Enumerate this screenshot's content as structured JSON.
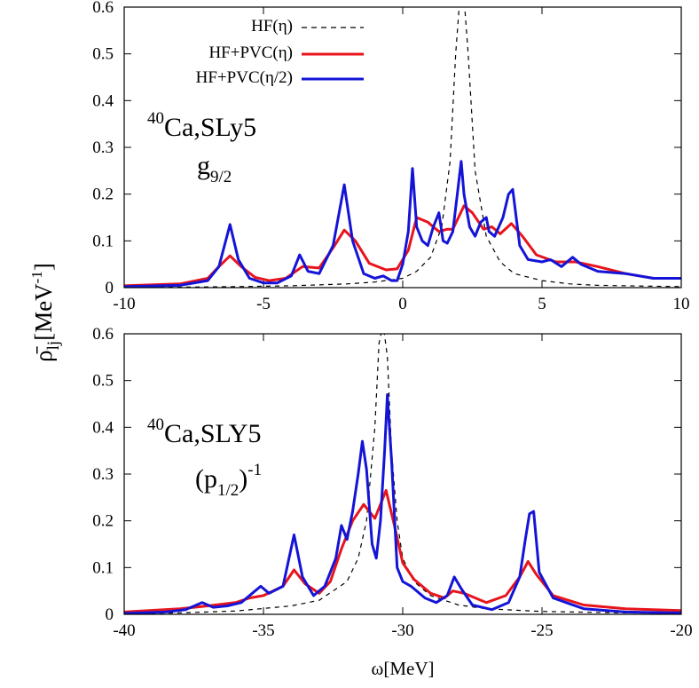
{
  "chart_data": [
    {
      "type": "line",
      "title": "",
      "xlim": [
        -10,
        10
      ],
      "ylim": [
        0,
        0.6
      ],
      "xticks": [
        "-10",
        "-5",
        "0",
        "5",
        "10"
      ],
      "xtick_values": [
        -10,
        -5,
        0,
        5,
        10
      ],
      "yticks": [
        "0",
        "0.1",
        "0.2",
        "0.3",
        "0.4",
        "0.5",
        "0.6"
      ],
      "ytick_values": [
        0,
        0.1,
        0.2,
        0.3,
        0.4,
        0.5,
        0.6
      ],
      "xlabel": "",
      "annotation": {
        "mass": "40",
        "nucleus": "Ca,SLy5",
        "orbital": "g",
        "orbital_sub": "9/2",
        "orbital_sup": ""
      },
      "legend": {
        "placement": "top-left"
      },
      "series": [
        {
          "name": "HF(η)",
          "color": "#000000",
          "dash": "dashed",
          "x": [
            -10,
            -6,
            -4,
            -2,
            -1,
            0,
            0.5,
            1,
            1.4,
            1.7,
            1.9,
            2.05,
            2.2,
            2.35,
            2.6,
            3,
            3.5,
            4,
            5,
            6,
            7,
            10
          ],
          "y": [
            0,
            0.002,
            0.004,
            0.008,
            0.012,
            0.02,
            0.035,
            0.065,
            0.13,
            0.27,
            0.5,
            0.62,
            0.62,
            0.5,
            0.25,
            0.11,
            0.055,
            0.03,
            0.015,
            0.008,
            0.005,
            0.002
          ]
        },
        {
          "name": "HF+PVC(η)",
          "color": "#e8141c",
          "dash": "solid",
          "x": [
            -10,
            -8,
            -7,
            -6.6,
            -6.2,
            -5.8,
            -5.3,
            -4.8,
            -4.2,
            -3.6,
            -3,
            -2.5,
            -2.1,
            -1.7,
            -1.2,
            -0.6,
            -0.2,
            0.2,
            0.5,
            0.9,
            1.3,
            1.6,
            1.8,
            2.2,
            2.5,
            2.9,
            3.2,
            3.5,
            3.9,
            4.3,
            4.8,
            5.5,
            6.2,
            7,
            8,
            9,
            10
          ],
          "y": [
            0.004,
            0.008,
            0.02,
            0.045,
            0.068,
            0.045,
            0.022,
            0.015,
            0.02,
            0.045,
            0.042,
            0.085,
            0.123,
            0.1,
            0.052,
            0.038,
            0.04,
            0.08,
            0.15,
            0.14,
            0.12,
            0.125,
            0.125,
            0.175,
            0.16,
            0.125,
            0.13,
            0.115,
            0.137,
            0.11,
            0.07,
            0.055,
            0.055,
            0.045,
            0.03,
            0.02,
            0.02
          ]
        },
        {
          "name": "HF+PVC(η/2)",
          "color": "#1414d8",
          "dash": "solid",
          "x": [
            -10,
            -8,
            -7,
            -6.6,
            -6.2,
            -5.9,
            -5.5,
            -5,
            -4.5,
            -4,
            -3.7,
            -3.4,
            -3,
            -2.5,
            -2.1,
            -1.8,
            -1.4,
            -1,
            -0.7,
            -0.4,
            -0.2,
            0,
            0.2,
            0.35,
            0.5,
            0.7,
            0.9,
            1.1,
            1.3,
            1.45,
            1.6,
            1.8,
            2,
            2.1,
            2.2,
            2.4,
            2.6,
            2.8,
            3.0,
            3.1,
            3.3,
            3.6,
            3.8,
            3.95,
            4.2,
            4.5,
            5,
            5.3,
            5.7,
            6.1,
            6.4,
            7,
            8,
            9,
            10
          ],
          "y": [
            0.002,
            0.005,
            0.015,
            0.045,
            0.135,
            0.06,
            0.02,
            0.01,
            0.01,
            0.025,
            0.07,
            0.035,
            0.03,
            0.09,
            0.22,
            0.1,
            0.03,
            0.02,
            0.025,
            0.015,
            0.015,
            0.05,
            0.12,
            0.255,
            0.13,
            0.1,
            0.09,
            0.13,
            0.16,
            0.1,
            0.095,
            0.12,
            0.22,
            0.27,
            0.2,
            0.13,
            0.11,
            0.14,
            0.15,
            0.12,
            0.11,
            0.15,
            0.2,
            0.21,
            0.09,
            0.06,
            0.055,
            0.06,
            0.045,
            0.065,
            0.05,
            0.035,
            0.03,
            0.02,
            0.02
          ]
        }
      ]
    },
    {
      "type": "line",
      "title": "",
      "xlim": [
        -40,
        -20
      ],
      "ylim": [
        0,
        0.6
      ],
      "xticks": [
        "-40",
        "-35",
        "-30",
        "-25",
        "-20"
      ],
      "xtick_values": [
        -40,
        -35,
        -30,
        -25,
        -20
      ],
      "yticks": [
        "0",
        "0.1",
        "0.2",
        "0.3",
        "0.4",
        "0.5",
        "0.6"
      ],
      "ytick_values": [
        0,
        0.1,
        0.2,
        0.3,
        0.4,
        0.5,
        0.6
      ],
      "xlabel": "ω[MeV]",
      "annotation": {
        "mass": "40",
        "nucleus": "Ca,SLY5",
        "orbital": "(p",
        "orbital_sub": "1/2",
        "orbital_sup": "-1"
      },
      "series": [
        {
          "name": "HF(η)",
          "color": "#000000",
          "dash": "dashed",
          "x": [
            -40,
            -38,
            -36,
            -34,
            -33,
            -32,
            -31.6,
            -31.3,
            -31.0,
            -30.85,
            -30.7,
            -30.55,
            -30.4,
            -30.2,
            -30.0,
            -29.6,
            -29,
            -28,
            -27,
            -25,
            -22,
            -20
          ],
          "y": [
            0.001,
            0.003,
            0.007,
            0.018,
            0.03,
            0.07,
            0.12,
            0.2,
            0.4,
            0.58,
            0.62,
            0.55,
            0.35,
            0.2,
            0.12,
            0.07,
            0.04,
            0.02,
            0.012,
            0.006,
            0.003,
            0.002
          ]
        },
        {
          "name": "HF+PVC(η)",
          "color": "#e8141c",
          "dash": "solid",
          "x": [
            -40,
            -38,
            -37,
            -36,
            -35.5,
            -35,
            -34.3,
            -33.9,
            -33.5,
            -33,
            -32.6,
            -32.2,
            -31.8,
            -31.4,
            -31.0,
            -30.6,
            -30.3,
            -30,
            -29.6,
            -29,
            -28.5,
            -28.2,
            -27.8,
            -27,
            -26.3,
            -25.8,
            -25.5,
            -25.2,
            -24.6,
            -23.5,
            -22,
            -20
          ],
          "y": [
            0.005,
            0.012,
            0.018,
            0.025,
            0.035,
            0.04,
            0.06,
            0.095,
            0.065,
            0.045,
            0.07,
            0.14,
            0.2,
            0.235,
            0.205,
            0.265,
            0.19,
            0.11,
            0.075,
            0.045,
            0.035,
            0.05,
            0.045,
            0.025,
            0.04,
            0.08,
            0.113,
            0.085,
            0.04,
            0.02,
            0.012,
            0.008
          ]
        },
        {
          "name": "HF+PVC(η/2)",
          "color": "#1414d8",
          "dash": "solid",
          "x": [
            -40,
            -38.5,
            -37.8,
            -37.2,
            -36.8,
            -36.3,
            -35.8,
            -35.4,
            -35.1,
            -34.8,
            -34.3,
            -33.9,
            -33.6,
            -33.2,
            -32.8,
            -32.4,
            -32.2,
            -32.0,
            -31.8,
            -31.6,
            -31.45,
            -31.3,
            -31.1,
            -30.95,
            -30.8,
            -30.65,
            -30.55,
            -30.4,
            -30.2,
            -30.0,
            -29.7,
            -29.2,
            -28.8,
            -28.4,
            -28.15,
            -27.9,
            -27.5,
            -26.8,
            -26.2,
            -25.8,
            -25.6,
            -25.45,
            -25.3,
            -25.1,
            -24.6,
            -23.5,
            -22,
            -20
          ],
          "y": [
            0.002,
            0.005,
            0.01,
            0.025,
            0.015,
            0.018,
            0.025,
            0.045,
            0.06,
            0.045,
            0.06,
            0.17,
            0.08,
            0.04,
            0.06,
            0.12,
            0.19,
            0.16,
            0.22,
            0.3,
            0.37,
            0.31,
            0.15,
            0.12,
            0.2,
            0.35,
            0.47,
            0.33,
            0.1,
            0.07,
            0.06,
            0.035,
            0.025,
            0.04,
            0.08,
            0.055,
            0.02,
            0.01,
            0.025,
            0.08,
            0.16,
            0.215,
            0.22,
            0.09,
            0.035,
            0.012,
            0.005,
            0.003
          ]
        }
      ]
    }
  ],
  "shared": {
    "ylabel_main": "ρ̄",
    "ylabel_sub": "lj",
    "ylabel_unit": "[MeV",
    "ylabel_exp": "-1",
    "ylabel_close": "]"
  }
}
